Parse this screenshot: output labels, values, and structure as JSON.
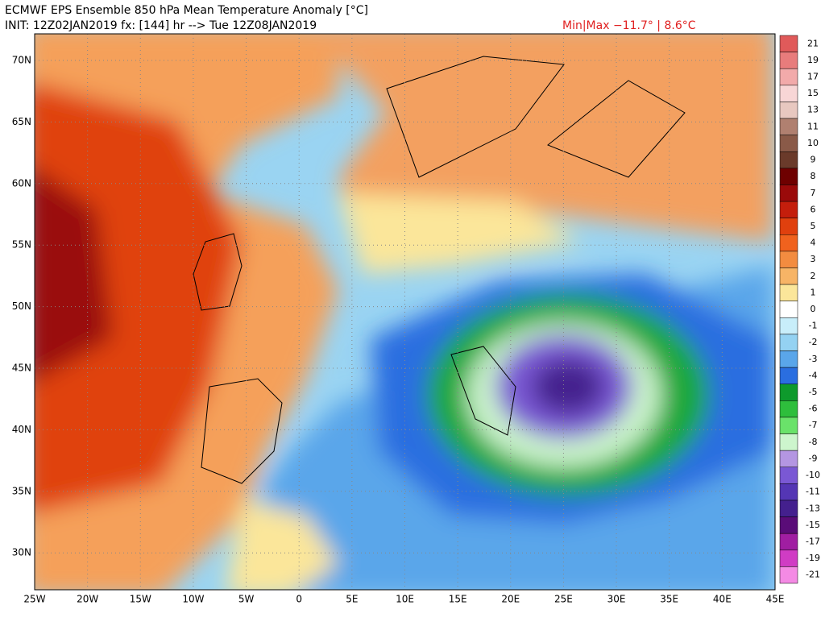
{
  "header": {
    "title": "ECMWF EPS Ensemble 850 hPa Mean Temperature Anomaly [°C]",
    "init": "INIT: 12Z02JAN2019 fx: [144] hr --> Tue 12Z08JAN2019",
    "minmax": "Min|Max −11.7° | 8.6°C"
  },
  "map": {
    "lat_labels": [
      "70N",
      "65N",
      "60N",
      "55N",
      "50N",
      "45N",
      "40N",
      "35N",
      "30N"
    ],
    "lon_labels": [
      "25W",
      "20W",
      "15W",
      "10W",
      "5W",
      "0",
      "5E",
      "10E",
      "15E",
      "20E",
      "25E",
      "30E",
      "35E",
      "40E",
      "45E"
    ]
  },
  "colorbar": {
    "levels": [
      21,
      19,
      17,
      15,
      13,
      11,
      10,
      9,
      8,
      7,
      6,
      5,
      4,
      3,
      2,
      1,
      0,
      -1,
      -2,
      -3,
      -4,
      -5,
      -6,
      -7,
      -8,
      -9,
      -10,
      -11,
      -13,
      -15,
      -17,
      -19,
      -21
    ],
    "colors": [
      "#e05a5a",
      "#e87c7c",
      "#f2aaaa",
      "#f8d6d6",
      "#e8c8c0",
      "#b08070",
      "#8a5a48",
      "#6a3a2a",
      "#6e0000",
      "#9a0a0a",
      "#c41e0c",
      "#e0400e",
      "#f0621e",
      "#f38c40",
      "#f7b466",
      "#fbe69a",
      "#ffffff",
      "#c8eefa",
      "#94d2f2",
      "#5aa6ea",
      "#2a6ee0",
      "#0e9a2c",
      "#2ebe3c",
      "#6ae26a",
      "#cdf5cd",
      "#b496e2",
      "#7a58d4",
      "#5436b4",
      "#44208e",
      "#5a0c78",
      "#a01ea2",
      "#d03cc4",
      "#f48ae4"
    ]
  }
}
